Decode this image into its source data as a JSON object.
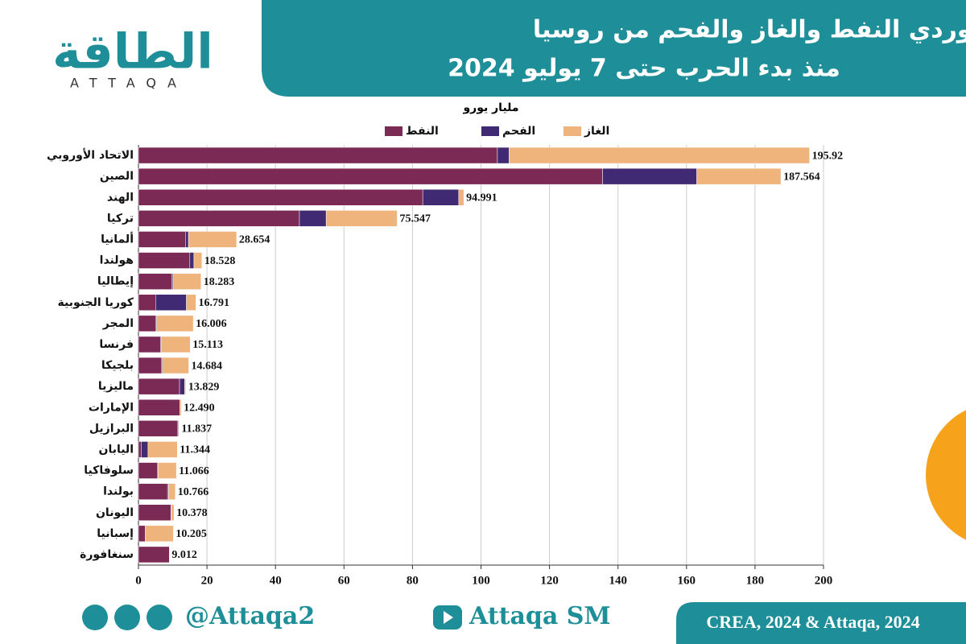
{
  "logo": {
    "text": "الطاقة",
    "sub": "ATTAQA"
  },
  "footer": {
    "handle": "@Attaqa2",
    "channel": "Attaqa SM",
    "source": "CREA, 2024 & Attaqa, 2024"
  },
  "chart_data": {
    "type": "stacked-bar-horizontal",
    "title": "أكبر مستوردي النفط والغاز والفحم من روسيا",
    "subtitle": "منذ بدء الحرب حتى 7 يوليو 2024",
    "unit_label": "مليار يورو",
    "categories": [
      "الاتحاد الأوروبي",
      "الصين",
      "الهند",
      "تركيا",
      "ألمانيا",
      "هولندا",
      "إيطاليا",
      "كوريا الجنوبية",
      "المجر",
      "فرنسا",
      "بلجيكا",
      "ماليزيا",
      "الإمارات",
      "البرازيل",
      "اليابان",
      "سلوفاكيا",
      "بولندا",
      "اليونان",
      "إسبانيا",
      "سنغافورة"
    ],
    "series": [
      {
        "name": "النفط",
        "color": "#7b2a55",
        "values": [
          104.8,
          135.5,
          83,
          47,
          13.8,
          15,
          9.8,
          5,
          5,
          6.5,
          6.8,
          12,
          12.1,
          11.5,
          0.8,
          5.6,
          8.5,
          9.5,
          2,
          9.012
        ]
      },
      {
        "name": "الفحم",
        "color": "#3f2a73",
        "values": [
          3.4,
          27.5,
          10.5,
          7.8,
          0.8,
          1.2,
          0.3,
          9,
          0.3,
          0.2,
          0.2,
          1.5,
          0,
          0.2,
          2,
          0.1,
          0.3,
          0.1,
          0,
          0
        ]
      },
      {
        "name": "الغاز",
        "color": "#efb47c",
        "values": [
          87.72,
          24.564,
          1.491,
          20.747,
          14.054,
          2.328,
          8.183,
          2.791,
          10.706,
          8.413,
          7.684,
          0.329,
          0.39,
          0.137,
          8.544,
          5.366,
          1.966,
          0.778,
          8.205,
          0
        ]
      }
    ],
    "totals": [
      195.92,
      187.564,
      94.991,
      75.547,
      28.654,
      18.528,
      18.283,
      16.791,
      16.006,
      15.113,
      14.684,
      13.829,
      12.49,
      11.837,
      11.344,
      11.066,
      10.766,
      10.378,
      10.205,
      9.012
    ],
    "total_labels": [
      "195.92",
      "187.564",
      "94.991",
      "75.547",
      "28.654",
      "18.528",
      "18.283",
      "16.791",
      "16.006",
      "15.113",
      "14.684",
      "13.829",
      "12.490",
      "11.837",
      "11.344",
      "11.066",
      "10.766",
      "10.378",
      "10.205",
      "9.012"
    ],
    "xlim": [
      0,
      200
    ],
    "xticks": [
      0,
      20,
      40,
      60,
      80,
      100,
      120,
      140,
      160,
      180,
      200
    ],
    "grid": true
  }
}
